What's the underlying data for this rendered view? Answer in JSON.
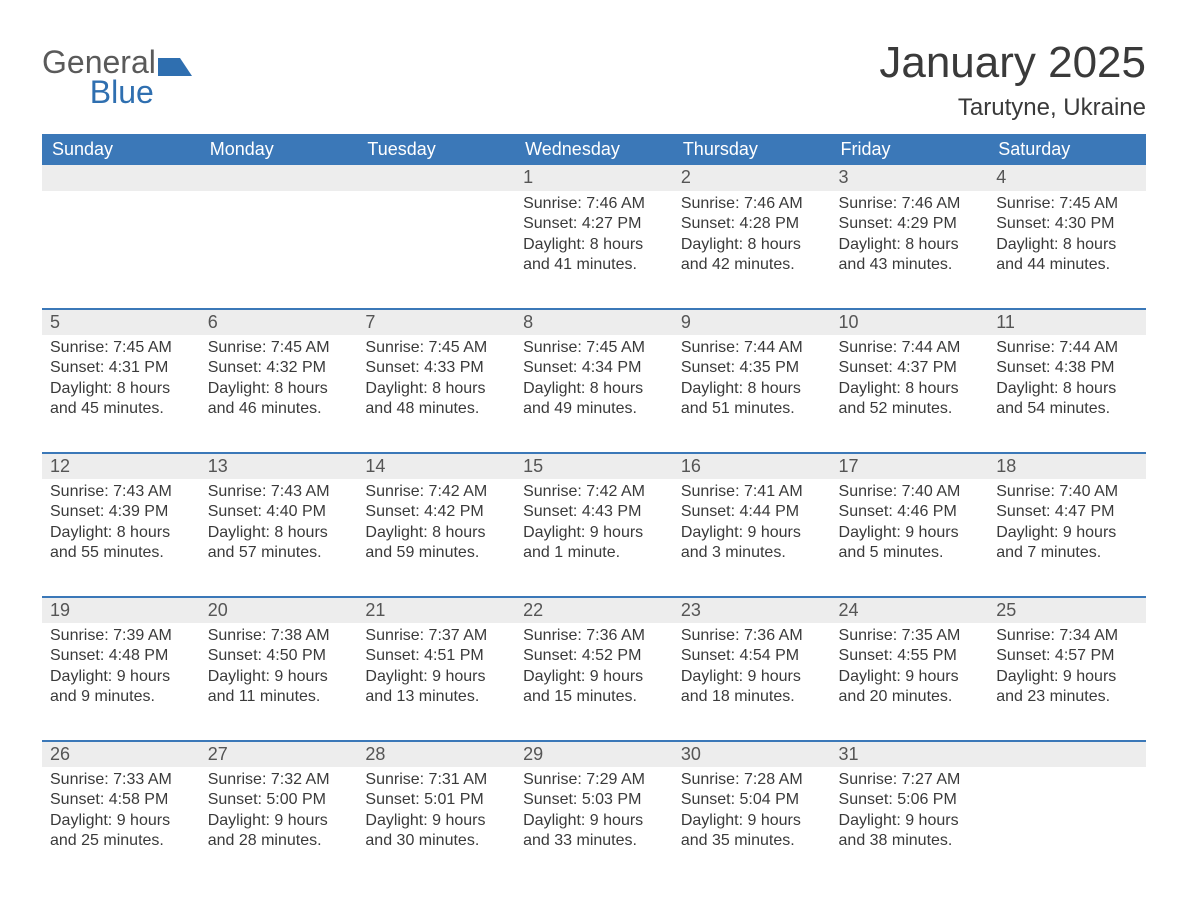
{
  "logo": {
    "word1": "General",
    "word2": "Blue",
    "icon_color": "#2f6fb0",
    "text_color": "#5a5a5a"
  },
  "header": {
    "month_title": "January 2025",
    "location": "Tarutyne, Ukraine"
  },
  "columns": [
    "Sunday",
    "Monday",
    "Tuesday",
    "Wednesday",
    "Thursday",
    "Friday",
    "Saturday"
  ],
  "colors": {
    "header_bg": "#3b78b8",
    "header_text": "#ffffff",
    "daynum_bg": "#ededed",
    "rule": "#3b78b8",
    "body_text": "#3a3a3a",
    "page_bg": "#ffffff"
  },
  "fonts": {
    "month_title_pt": 44,
    "location_pt": 24,
    "weekday_pt": 18,
    "daynum_pt": 18,
    "detail_pt": 16
  },
  "weeks": [
    [
      null,
      null,
      null,
      {
        "n": "1",
        "sunrise": "7:46 AM",
        "sunset": "4:27 PM",
        "day_h": "8",
        "day_m": "41"
      },
      {
        "n": "2",
        "sunrise": "7:46 AM",
        "sunset": "4:28 PM",
        "day_h": "8",
        "day_m": "42"
      },
      {
        "n": "3",
        "sunrise": "7:46 AM",
        "sunset": "4:29 PM",
        "day_h": "8",
        "day_m": "43"
      },
      {
        "n": "4",
        "sunrise": "7:45 AM",
        "sunset": "4:30 PM",
        "day_h": "8",
        "day_m": "44"
      }
    ],
    [
      {
        "n": "5",
        "sunrise": "7:45 AM",
        "sunset": "4:31 PM",
        "day_h": "8",
        "day_m": "45"
      },
      {
        "n": "6",
        "sunrise": "7:45 AM",
        "sunset": "4:32 PM",
        "day_h": "8",
        "day_m": "46"
      },
      {
        "n": "7",
        "sunrise": "7:45 AM",
        "sunset": "4:33 PM",
        "day_h": "8",
        "day_m": "48"
      },
      {
        "n": "8",
        "sunrise": "7:45 AM",
        "sunset": "4:34 PM",
        "day_h": "8",
        "day_m": "49"
      },
      {
        "n": "9",
        "sunrise": "7:44 AM",
        "sunset": "4:35 PM",
        "day_h": "8",
        "day_m": "51"
      },
      {
        "n": "10",
        "sunrise": "7:44 AM",
        "sunset": "4:37 PM",
        "day_h": "8",
        "day_m": "52"
      },
      {
        "n": "11",
        "sunrise": "7:44 AM",
        "sunset": "4:38 PM",
        "day_h": "8",
        "day_m": "54"
      }
    ],
    [
      {
        "n": "12",
        "sunrise": "7:43 AM",
        "sunset": "4:39 PM",
        "day_h": "8",
        "day_m": "55"
      },
      {
        "n": "13",
        "sunrise": "7:43 AM",
        "sunset": "4:40 PM",
        "day_h": "8",
        "day_m": "57"
      },
      {
        "n": "14",
        "sunrise": "7:42 AM",
        "sunset": "4:42 PM",
        "day_h": "8",
        "day_m": "59"
      },
      {
        "n": "15",
        "sunrise": "7:42 AM",
        "sunset": "4:43 PM",
        "day_h": "9",
        "day_m": "1",
        "unit": "minute"
      },
      {
        "n": "16",
        "sunrise": "7:41 AM",
        "sunset": "4:44 PM",
        "day_h": "9",
        "day_m": "3"
      },
      {
        "n": "17",
        "sunrise": "7:40 AM",
        "sunset": "4:46 PM",
        "day_h": "9",
        "day_m": "5"
      },
      {
        "n": "18",
        "sunrise": "7:40 AM",
        "sunset": "4:47 PM",
        "day_h": "9",
        "day_m": "7"
      }
    ],
    [
      {
        "n": "19",
        "sunrise": "7:39 AM",
        "sunset": "4:48 PM",
        "day_h": "9",
        "day_m": "9"
      },
      {
        "n": "20",
        "sunrise": "7:38 AM",
        "sunset": "4:50 PM",
        "day_h": "9",
        "day_m": "11"
      },
      {
        "n": "21",
        "sunrise": "7:37 AM",
        "sunset": "4:51 PM",
        "day_h": "9",
        "day_m": "13"
      },
      {
        "n": "22",
        "sunrise": "7:36 AM",
        "sunset": "4:52 PM",
        "day_h": "9",
        "day_m": "15"
      },
      {
        "n": "23",
        "sunrise": "7:36 AM",
        "sunset": "4:54 PM",
        "day_h": "9",
        "day_m": "18"
      },
      {
        "n": "24",
        "sunrise": "7:35 AM",
        "sunset": "4:55 PM",
        "day_h": "9",
        "day_m": "20"
      },
      {
        "n": "25",
        "sunrise": "7:34 AM",
        "sunset": "4:57 PM",
        "day_h": "9",
        "day_m": "23"
      }
    ],
    [
      {
        "n": "26",
        "sunrise": "7:33 AM",
        "sunset": "4:58 PM",
        "day_h": "9",
        "day_m": "25"
      },
      {
        "n": "27",
        "sunrise": "7:32 AM",
        "sunset": "5:00 PM",
        "day_h": "9",
        "day_m": "28"
      },
      {
        "n": "28",
        "sunrise": "7:31 AM",
        "sunset": "5:01 PM",
        "day_h": "9",
        "day_m": "30"
      },
      {
        "n": "29",
        "sunrise": "7:29 AM",
        "sunset": "5:03 PM",
        "day_h": "9",
        "day_m": "33"
      },
      {
        "n": "30",
        "sunrise": "7:28 AM",
        "sunset": "5:04 PM",
        "day_h": "9",
        "day_m": "35"
      },
      {
        "n": "31",
        "sunrise": "7:27 AM",
        "sunset": "5:06 PM",
        "day_h": "9",
        "day_m": "38"
      },
      null
    ]
  ],
  "labels": {
    "sunrise": "Sunrise: ",
    "sunset": "Sunset: ",
    "daylight": "Daylight: ",
    "hours": " hours",
    "and": "and ",
    "minutes": " minutes.",
    "minute": " minute."
  }
}
